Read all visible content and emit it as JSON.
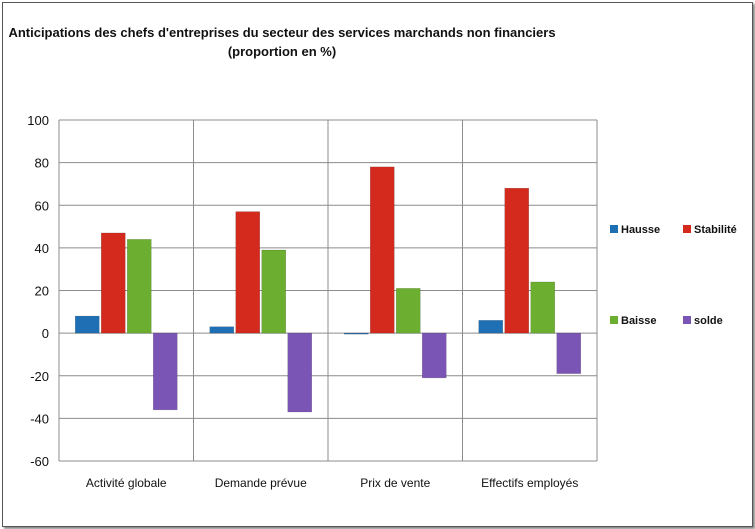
{
  "chart_data": {
    "type": "bar",
    "title_lines": [
      "Anticipations des chefs d'entreprises du secteur des services marchands non financiers",
      "(proportion en %)"
    ],
    "categories": [
      "Activité globale",
      "Demande prévue",
      "Prix de vente",
      "Effectifs employés"
    ],
    "series": [
      {
        "name": "Hausse",
        "values": [
          8,
          3,
          0,
          6
        ],
        "color": "#1f6fb4"
      },
      {
        "name": "Stabilité",
        "values": [
          47,
          57,
          78,
          68
        ],
        "color": "#d42a1e"
      },
      {
        "name": "Baisse",
        "values": [
          44,
          39,
          21,
          24
        ],
        "color": "#6cae2f"
      },
      {
        "name": "solde",
        "values": [
          -36,
          -37,
          -21,
          -19
        ],
        "color": "#7b55b5"
      }
    ],
    "ylim": [
      -60,
      100
    ],
    "yticks": [
      "100",
      "80",
      "60",
      "40",
      "20",
      "0",
      "-20",
      "-40",
      "-60"
    ],
    "grid": true,
    "legend": "right, two columns"
  }
}
